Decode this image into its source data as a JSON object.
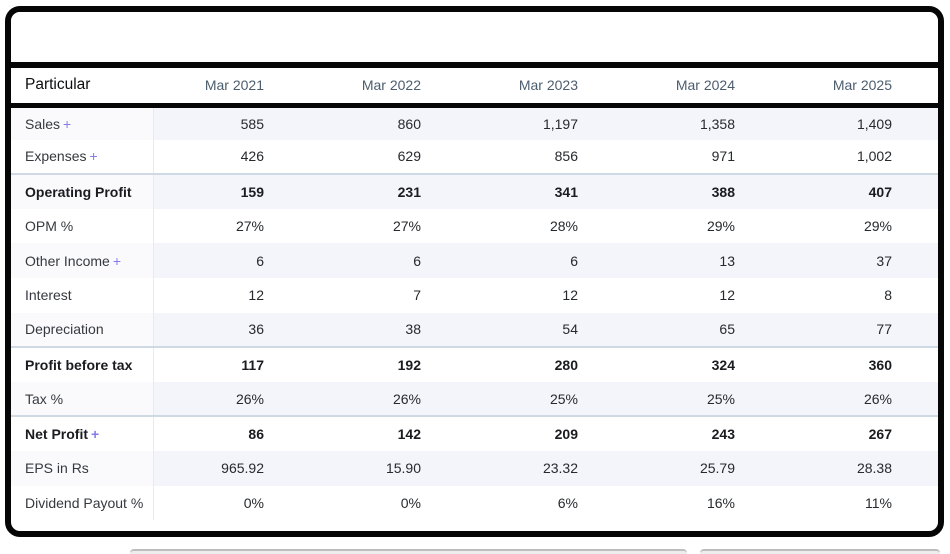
{
  "top_box": {
    "content": ""
  },
  "table": {
    "header": {
      "particular": "Particular",
      "columns": [
        "Mar 2021",
        "Mar 2022",
        "Mar 2023",
        "Mar 2024",
        "Mar 2025"
      ]
    },
    "expand_symbol": "+",
    "rows": [
      {
        "label": "Sales",
        "expandable": true,
        "bold": false,
        "strong_border": false,
        "values": [
          "585",
          "860",
          "1,197",
          "1,358",
          "1,409"
        ]
      },
      {
        "label": "Expenses",
        "expandable": true,
        "bold": false,
        "strong_border": false,
        "values": [
          "426",
          "629",
          "856",
          "971",
          "1,002"
        ]
      },
      {
        "label": "Operating Profit",
        "expandable": false,
        "bold": true,
        "strong_border": true,
        "values": [
          "159",
          "231",
          "341",
          "388",
          "407"
        ]
      },
      {
        "label": "OPM %",
        "expandable": false,
        "bold": false,
        "strong_border": false,
        "values": [
          "27%",
          "27%",
          "28%",
          "29%",
          "29%"
        ]
      },
      {
        "label": "Other Income",
        "expandable": true,
        "bold": false,
        "strong_border": false,
        "values": [
          "6",
          "6",
          "6",
          "13",
          "37"
        ]
      },
      {
        "label": "Interest",
        "expandable": false,
        "bold": false,
        "strong_border": false,
        "values": [
          "12",
          "7",
          "12",
          "12",
          "8"
        ]
      },
      {
        "label": "Depreciation",
        "expandable": false,
        "bold": false,
        "strong_border": false,
        "values": [
          "36",
          "38",
          "54",
          "65",
          "77"
        ]
      },
      {
        "label": "Profit before tax",
        "expandable": false,
        "bold": true,
        "strong_border": true,
        "values": [
          "117",
          "192",
          "280",
          "324",
          "360"
        ]
      },
      {
        "label": "Tax %",
        "expandable": false,
        "bold": false,
        "strong_border": false,
        "values": [
          "26%",
          "26%",
          "25%",
          "25%",
          "26%"
        ]
      },
      {
        "label": "Net Profit",
        "expandable": true,
        "bold": true,
        "strong_border": true,
        "values": [
          "86",
          "142",
          "209",
          "243",
          "267"
        ]
      },
      {
        "label": "EPS in Rs",
        "expandable": false,
        "bold": false,
        "strong_border": false,
        "values": [
          "965.92",
          "15.90",
          "23.32",
          "25.79",
          "28.38"
        ]
      },
      {
        "label": "Dividend Payout %",
        "expandable": false,
        "bold": false,
        "strong_border": false,
        "values": [
          "0%",
          "0%",
          "6%",
          "16%",
          "11%"
        ]
      }
    ]
  },
  "colors": {
    "frame_border": "#060606",
    "stripe_background": "#f4f5fb",
    "strong_row_border": "#cfd9e4",
    "year_header_text": "#4c5d6e",
    "expand_accent": "#837cea"
  }
}
